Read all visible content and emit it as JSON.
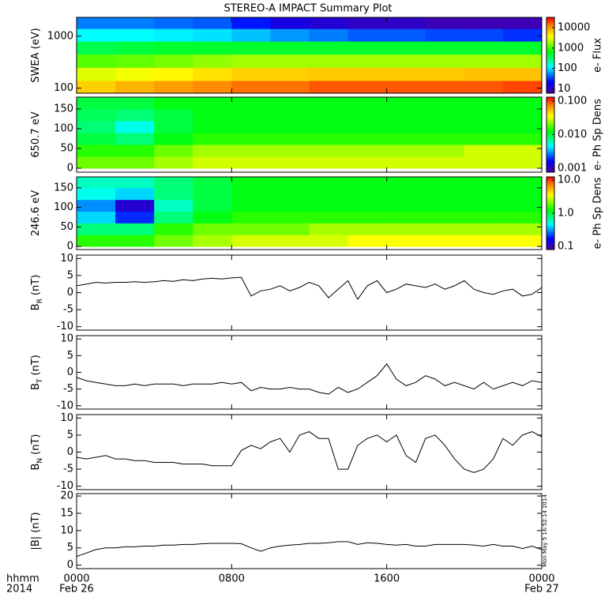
{
  "title": "STEREO-A IMPACT Summary Plot",
  "footnote": "Mon May  5 16:52:14 2014",
  "chart_data": [
    {
      "type": "heatmap",
      "ylabel": [
        "SWEA (eV)"
      ],
      "ylog": true,
      "ylim": [
        80,
        2300
      ],
      "yticks": [
        100,
        1000
      ],
      "xlim": [
        0,
        24
      ],
      "x": [
        0,
        2,
        4,
        6,
        8,
        10,
        12,
        14,
        16,
        18,
        20,
        22,
        24
      ],
      "y": [
        80,
        140,
        250,
        450,
        800,
        1400,
        2300
      ],
      "values": [
        [
          6000,
          8000,
          10000,
          12000,
          15000,
          15000,
          18000,
          18000,
          18000,
          18000,
          18000,
          20000
        ],
        [
          3000,
          3500,
          4000,
          5000,
          6000,
          6000,
          6500,
          6500,
          6500,
          6500,
          7000,
          7000
        ],
        [
          1200,
          1300,
          1500,
          1800,
          2000,
          2000,
          2000,
          2000,
          2000,
          2000,
          2000,
          2000
        ],
        [
          400,
          450,
          500,
          500,
          500,
          500,
          500,
          500,
          500,
          500,
          500,
          500
        ],
        [
          120,
          120,
          110,
          100,
          80,
          60,
          50,
          40,
          40,
          35,
          35,
          30
        ],
        [
          50,
          50,
          45,
          40,
          25,
          15,
          12,
          10,
          10,
          8,
          8,
          8
        ]
      ],
      "zlog": true,
      "zlim": [
        6,
        32000
      ],
      "zticks": [
        10,
        100,
        1000,
        10000
      ],
      "colorbar_label": "e- Flux"
    },
    {
      "type": "heatmap",
      "ylabel": [
        "650.7 eV"
      ],
      "ylog": false,
      "ylim": [
        -10,
        180
      ],
      "yticks": [
        0,
        50,
        100,
        150
      ],
      "xlim": [
        0,
        24
      ],
      "x": [
        0,
        2,
        4,
        6,
        8,
        10,
        12,
        14,
        16,
        18,
        20,
        22,
        24
      ],
      "y": [
        0,
        30,
        60,
        90,
        120,
        150,
        180
      ],
      "values": [
        [
          0.02,
          0.02,
          0.025,
          0.03,
          0.03,
          0.03,
          0.03,
          0.03,
          0.03,
          0.03,
          0.03,
          0.03
        ],
        [
          0.015,
          0.015,
          0.02,
          0.025,
          0.025,
          0.025,
          0.025,
          0.025,
          0.025,
          0.025,
          0.03,
          0.03
        ],
        [
          0.01,
          0.008,
          0.012,
          0.015,
          0.015,
          0.015,
          0.015,
          0.015,
          0.015,
          0.015,
          0.015,
          0.015
        ],
        [
          0.008,
          0.005,
          0.01,
          0.012,
          0.012,
          0.012,
          0.012,
          0.012,
          0.012,
          0.012,
          0.012,
          0.012
        ],
        [
          0.009,
          0.008,
          0.01,
          0.012,
          0.012,
          0.012,
          0.012,
          0.012,
          0.012,
          0.012,
          0.012,
          0.012
        ],
        [
          0.01,
          0.01,
          0.012,
          0.012,
          0.012,
          0.012,
          0.012,
          0.012,
          0.012,
          0.012,
          0.012,
          0.012
        ]
      ],
      "zlog": true,
      "zlim": [
        0.00076,
        0.131
      ],
      "zticks": [
        0.001,
        {
          "value": 0.01,
          "label": "0.010"
        },
        {
          "value": 0.1,
          "label": "0.100"
        }
      ],
      "colorbar_label": "e- Ph Sp Dens"
    },
    {
      "type": "heatmap",
      "ylabel": [
        "246.6 eV"
      ],
      "ylog": false,
      "ylim": [
        -8,
        178
      ],
      "yticks": [
        0,
        50,
        100,
        150
      ],
      "xlim": [
        0,
        24
      ],
      "x": [
        0,
        2,
        4,
        6,
        8,
        10,
        12,
        14,
        16,
        18,
        20,
        22,
        24
      ],
      "y": [
        0,
        30,
        60,
        90,
        120,
        150,
        180
      ],
      "values": [
        [
          1.5,
          1.5,
          2,
          2.5,
          3,
          3,
          3,
          3.5,
          3.5,
          3.5,
          3.5,
          3.5
        ],
        [
          0.8,
          0.8,
          1.5,
          2,
          2,
          2,
          2.5,
          2.5,
          2.5,
          2.5,
          2.5,
          2.5
        ],
        [
          0.4,
          0.2,
          0.8,
          1.2,
          1.5,
          1.5,
          1.5,
          1.5,
          1.5,
          1.5,
          1.5,
          1.5
        ],
        [
          0.3,
          0.12,
          0.6,
          1,
          1.2,
          1.2,
          1.2,
          1.2,
          1.2,
          1.2,
          1.2,
          1.2
        ],
        [
          0.5,
          0.4,
          0.8,
          1,
          1.2,
          1.2,
          1.2,
          1.2,
          1.2,
          1.2,
          1.2,
          1.2
        ],
        [
          0.6,
          0.6,
          0.8,
          1,
          1.2,
          1.2,
          1.2,
          1.2,
          1.2,
          1.2,
          1.2,
          1.2
        ]
      ],
      "zlog": true,
      "zlim": [
        0.08,
        12.5
      ],
      "zticks": [
        0.1,
        {
          "value": 1,
          "label": "1.0"
        },
        {
          "value": 10,
          "label": "10.0"
        }
      ],
      "colorbar_label": "e- Ph Sp Dens"
    },
    {
      "type": "line",
      "ylabel": [
        "B",
        "R",
        "(nT)"
      ],
      "ylim": [
        -11,
        11
      ],
      "yticks": [
        -10,
        -5,
        0,
        5,
        10
      ],
      "xlim": [
        0,
        24
      ],
      "color": "#000000",
      "x": [
        0,
        0.5,
        1,
        1.5,
        2,
        2.5,
        3,
        3.5,
        4,
        4.5,
        5,
        5.5,
        6,
        6.5,
        7,
        7.5,
        8,
        8.5,
        9,
        9.5,
        10,
        10.5,
        11,
        11.5,
        12,
        12.5,
        13,
        13.5,
        14,
        14.5,
        15,
        15.5,
        16,
        16.5,
        17,
        17.5,
        18,
        18.5,
        19,
        19.5,
        20,
        20.5,
        21,
        21.5,
        22,
        22.5,
        23,
        23.5,
        24
      ],
      "values": [
        2,
        2.5,
        3,
        2.8,
        3,
        3,
        3.2,
        3,
        3.2,
        3.5,
        3.3,
        3.8,
        3.5,
        4,
        4.2,
        4,
        4.3,
        4.5,
        -1,
        0.5,
        1,
        2,
        0.5,
        1.5,
        3,
        2,
        -1.5,
        1,
        3.5,
        -2,
        2,
        3.5,
        0,
        1,
        2.5,
        2,
        1.5,
        2.5,
        1,
        2,
        3.5,
        1,
        0,
        -0.5,
        0.5,
        1,
        -1,
        -0.5,
        1.5
      ]
    },
    {
      "type": "line",
      "ylabel": [
        "B",
        "T",
        "(nT)"
      ],
      "ylim": [
        -11,
        11
      ],
      "yticks": [
        -10,
        -5,
        0,
        5,
        10
      ],
      "xlim": [
        0,
        24
      ],
      "color": "#000000",
      "x": [
        0,
        0.5,
        1,
        1.5,
        2,
        2.5,
        3,
        3.5,
        4,
        4.5,
        5,
        5.5,
        6,
        6.5,
        7,
        7.5,
        8,
        8.5,
        9,
        9.5,
        10,
        10.5,
        11,
        11.5,
        12,
        12.5,
        13,
        13.5,
        14,
        14.5,
        15,
        15.5,
        16,
        16.5,
        17,
        17.5,
        18,
        18.5,
        19,
        19.5,
        20,
        20.5,
        21,
        21.5,
        22,
        22.5,
        23,
        23.5,
        24
      ],
      "values": [
        -1.5,
        -2.5,
        -3,
        -3.5,
        -4,
        -4,
        -3.5,
        -4,
        -3.5,
        -3.5,
        -3.5,
        -4,
        -3.5,
        -3.5,
        -3.5,
        -3,
        -3.5,
        -3,
        -5.5,
        -4.5,
        -5,
        -5,
        -4.5,
        -5,
        -5,
        -6,
        -6.5,
        -4.5,
        -6,
        -5,
        -3,
        -1,
        2.5,
        -2,
        -4,
        -3,
        -1,
        -2,
        -4,
        -3,
        -4,
        -5,
        -3,
        -5,
        -4,
        -3,
        -4,
        -2.5,
        -3
      ]
    },
    {
      "type": "line",
      "ylabel": [
        "B",
        "N",
        "(nT)"
      ],
      "ylim": [
        -11,
        11
      ],
      "yticks": [
        -10,
        -5,
        0,
        5,
        10
      ],
      "xlim": [
        0,
        24
      ],
      "color": "#000000",
      "x": [
        0,
        0.5,
        1,
        1.5,
        2,
        2.5,
        3,
        3.5,
        4,
        4.5,
        5,
        5.5,
        6,
        6.5,
        7,
        7.5,
        8,
        8.5,
        9,
        9.5,
        10,
        10.5,
        11,
        11.5,
        12,
        12.5,
        13,
        13.5,
        14,
        14.5,
        15,
        15.5,
        16,
        16.5,
        17,
        17.5,
        18,
        18.5,
        19,
        19.5,
        20,
        20.5,
        21,
        21.5,
        22,
        22.5,
        23,
        23.5,
        24
      ],
      "values": [
        -1.5,
        -2,
        -1.5,
        -1,
        -2,
        -2,
        -2.5,
        -2.5,
        -3,
        -3,
        -3,
        -3.5,
        -3.5,
        -3.5,
        -4,
        -4,
        -4,
        0.5,
        2,
        1,
        3,
        4,
        0,
        5,
        6,
        4,
        4,
        -5,
        -5,
        2,
        4,
        5,
        3,
        5,
        -1,
        -3,
        4,
        5,
        2,
        -2,
        -5,
        -6,
        -5,
        -2,
        4,
        2,
        5,
        6,
        4.5
      ]
    },
    {
      "type": "line",
      "ylabel": [
        "|B| (nT)"
      ],
      "ylim": [
        -1,
        20.7
      ],
      "yticks": [
        0,
        5,
        10,
        15,
        20
      ],
      "xlim": [
        0,
        24
      ],
      "color": "#000000",
      "x": [
        0,
        0.5,
        1,
        1.5,
        2,
        2.5,
        3,
        3.5,
        4,
        4.5,
        5,
        5.5,
        6,
        6.5,
        7,
        7.5,
        8,
        8.5,
        9,
        9.5,
        10,
        10.5,
        11,
        11.5,
        12,
        12.5,
        13,
        13.5,
        14,
        14.5,
        15,
        15.5,
        16,
        16.5,
        17,
        17.5,
        18,
        18.5,
        19,
        19.5,
        20,
        20.5,
        21,
        21.5,
        22,
        22.5,
        23,
        23.5,
        24
      ],
      "values": [
        2.5,
        3.5,
        4.5,
        5,
        5,
        5.3,
        5.3,
        5.5,
        5.5,
        5.8,
        5.8,
        6,
        6,
        6.2,
        6.3,
        6.3,
        6.3,
        6.2,
        5,
        4,
        5,
        5.5,
        5.8,
        6,
        6.3,
        6.3,
        6.5,
        6.8,
        6.8,
        6,
        6.5,
        6.3,
        6,
        5.8,
        6,
        5.5,
        5.5,
        6,
        6,
        6,
        6,
        5.8,
        5.5,
        6,
        5.5,
        5.5,
        4.8,
        5.5,
        4.5
      ],
      "xlabel": [
        "hhmm",
        "2014"
      ],
      "xticks": [
        {
          "value": 0,
          "label": "0000"
        },
        {
          "value": 8,
          "label": "0800"
        },
        {
          "value": 16,
          "label": "1600"
        },
        {
          "value": 24,
          "label": "0000"
        }
      ],
      "xdates": [
        {
          "value": 0,
          "label": "Feb 26"
        },
        {
          "value": 24,
          "label": "Feb 27"
        }
      ]
    }
  ]
}
